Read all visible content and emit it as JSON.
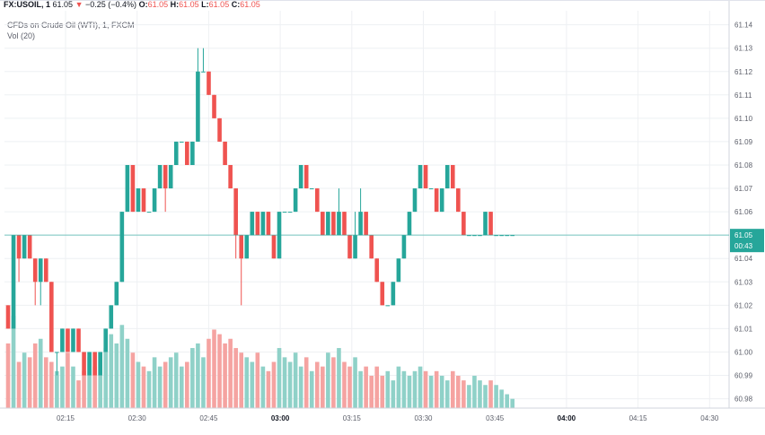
{
  "header": {
    "symbol": "FX:USOIL, 1",
    "last": "61.05",
    "arrow": "▼",
    "change": "−0.25 (−0.4%)",
    "o_label": "O:",
    "o_val": "61.05",
    "h_label": "H:",
    "h_val": "61.05",
    "l_label": "L:",
    "l_val": "61.05",
    "c_label": "C:",
    "c_val": "61.05"
  },
  "legend": {
    "title": "CFDs on Crude Oil (WTI), 1, FXCM",
    "volume": "Vol (20)"
  },
  "price_tag": {
    "value": "61.05",
    "countdown": "00:43"
  },
  "colors": {
    "up": "#26a69a",
    "down": "#ef5350",
    "vol_up": "#8fd1c8",
    "vol_down": "#f5a3a1",
    "price_line": "#26a69a"
  },
  "chart_data": {
    "type": "candlestick",
    "x_ticks": [
      "02:15",
      "02:30",
      "02:45",
      "03:00",
      "03:15",
      "03:30",
      "03:45",
      "04:00",
      "04:15",
      "04:30"
    ],
    "x_ticks_bold": [
      "03:00",
      "04:00"
    ],
    "y_ticks": [
      "61.14",
      "61.13",
      "61.12",
      "61.11",
      "61.10",
      "61.09",
      "61.08",
      "61.07",
      "61.06",
      "61.05",
      "61.04",
      "61.03",
      "61.02",
      "61.01",
      "61.00",
      "60.99",
      "60.98"
    ],
    "y_range": [
      60.976,
      61.146
    ],
    "last_price": 61.05,
    "candles": [
      [
        61.02,
        61.01,
        61.02,
        61.01,
        14
      ],
      [
        61.01,
        61.05,
        61.05,
        61.01,
        20
      ],
      [
        61.05,
        61.04,
        61.05,
        61.03,
        10
      ],
      [
        61.04,
        61.05,
        61.05,
        61.04,
        12
      ],
      [
        61.05,
        61.04,
        61.05,
        61.04,
        11
      ],
      [
        61.04,
        61.03,
        61.04,
        61.02,
        14
      ],
      [
        61.03,
        61.04,
        61.04,
        61.02,
        15
      ],
      [
        61.04,
        61.03,
        61.04,
        61.03,
        11
      ],
      [
        61.03,
        61.0,
        61.03,
        61.0,
        10
      ],
      [
        61.0,
        61.0,
        61.0,
        60.99,
        8
      ],
      [
        61.0,
        61.01,
        61.01,
        61.0,
        9
      ],
      [
        61.01,
        61.0,
        61.01,
        61.0,
        12
      ],
      [
        61.0,
        61.01,
        61.01,
        61.0,
        9
      ],
      [
        61.01,
        61.0,
        61.01,
        61.0,
        6
      ],
      [
        61.0,
        60.99,
        61.0,
        60.99,
        8
      ],
      [
        60.99,
        61.0,
        61.0,
        60.99,
        11
      ],
      [
        61.0,
        60.99,
        61.0,
        60.99,
        9
      ],
      [
        60.99,
        61.0,
        61.0,
        60.99,
        12
      ],
      [
        61.0,
        61.01,
        61.01,
        61.0,
        13
      ],
      [
        61.01,
        61.02,
        61.02,
        61.01,
        16
      ],
      [
        61.02,
        61.03,
        61.03,
        61.02,
        14
      ],
      [
        61.03,
        61.06,
        61.06,
        61.03,
        18
      ],
      [
        61.06,
        61.08,
        61.08,
        61.06,
        15
      ],
      [
        61.08,
        61.06,
        61.08,
        61.06,
        12
      ],
      [
        61.06,
        61.07,
        61.07,
        61.06,
        10
      ],
      [
        61.07,
        61.06,
        61.07,
        61.06,
        9
      ],
      [
        61.06,
        61.06,
        61.06,
        61.06,
        8
      ],
      [
        61.06,
        61.07,
        61.07,
        61.06,
        11
      ],
      [
        61.07,
        61.08,
        61.08,
        61.07,
        9
      ],
      [
        61.08,
        61.07,
        61.08,
        61.06,
        10
      ],
      [
        61.07,
        61.08,
        61.08,
        61.07,
        11
      ],
      [
        61.08,
        61.09,
        61.09,
        61.08,
        12
      ],
      [
        61.09,
        61.09,
        61.09,
        61.09,
        9
      ],
      [
        61.09,
        61.08,
        61.09,
        61.08,
        10
      ],
      [
        61.08,
        61.09,
        61.09,
        61.08,
        13
      ],
      [
        61.09,
        61.12,
        61.13,
        61.09,
        14
      ],
      [
        61.12,
        61.12,
        61.13,
        61.12,
        11
      ],
      [
        61.12,
        61.11,
        61.12,
        61.11,
        15
      ],
      [
        61.11,
        61.1,
        61.11,
        61.1,
        17
      ],
      [
        61.1,
        61.09,
        61.1,
        61.09,
        16
      ],
      [
        61.09,
        61.08,
        61.09,
        61.08,
        14
      ],
      [
        61.08,
        61.07,
        61.08,
        61.07,
        15
      ],
      [
        61.07,
        61.05,
        61.07,
        61.04,
        13
      ],
      [
        61.05,
        61.04,
        61.05,
        61.02,
        12
      ],
      [
        61.04,
        61.05,
        61.05,
        61.04,
        11
      ],
      [
        61.05,
        61.06,
        61.06,
        61.05,
        10
      ],
      [
        61.06,
        61.05,
        61.06,
        61.05,
        12
      ],
      [
        61.05,
        61.06,
        61.06,
        61.05,
        9
      ],
      [
        61.06,
        61.05,
        61.06,
        61.05,
        8
      ],
      [
        61.05,
        61.04,
        61.05,
        61.04,
        10
      ],
      [
        61.04,
        61.06,
        61.06,
        61.04,
        13
      ],
      [
        61.06,
        61.06,
        61.06,
        61.06,
        11
      ],
      [
        61.06,
        61.06,
        61.06,
        61.06,
        10
      ],
      [
        61.06,
        61.07,
        61.07,
        61.06,
        12
      ],
      [
        61.07,
        61.08,
        61.08,
        61.07,
        9
      ],
      [
        61.08,
        61.07,
        61.08,
        61.07,
        11
      ],
      [
        61.07,
        61.07,
        61.07,
        61.07,
        8
      ],
      [
        61.07,
        61.06,
        61.07,
        61.06,
        10
      ],
      [
        61.06,
        61.05,
        61.06,
        61.05,
        9
      ],
      [
        61.05,
        61.06,
        61.06,
        61.05,
        12
      ],
      [
        61.06,
        61.05,
        61.06,
        61.05,
        11
      ],
      [
        61.05,
        61.06,
        61.07,
        61.05,
        13
      ],
      [
        61.06,
        61.05,
        61.06,
        61.05,
        10
      ],
      [
        61.05,
        61.04,
        61.05,
        61.04,
        9
      ],
      [
        61.04,
        61.05,
        61.06,
        61.04,
        11
      ],
      [
        61.05,
        61.06,
        61.07,
        61.05,
        8
      ],
      [
        61.06,
        61.05,
        61.06,
        61.05,
        9
      ],
      [
        61.05,
        61.04,
        61.05,
        61.04,
        7
      ],
      [
        61.04,
        61.03,
        61.04,
        61.03,
        9
      ],
      [
        61.03,
        61.02,
        61.03,
        61.02,
        7
      ],
      [
        61.02,
        61.02,
        61.02,
        61.02,
        8
      ],
      [
        61.02,
        61.03,
        61.03,
        61.02,
        6
      ],
      [
        61.03,
        61.04,
        61.04,
        61.03,
        9
      ],
      [
        61.04,
        61.05,
        61.05,
        61.04,
        8
      ],
      [
        61.05,
        61.06,
        61.06,
        61.05,
        7
      ],
      [
        61.06,
        61.07,
        61.07,
        61.06,
        8
      ],
      [
        61.07,
        61.08,
        61.08,
        61.07,
        9
      ],
      [
        61.08,
        61.07,
        61.08,
        61.07,
        8
      ],
      [
        61.07,
        61.07,
        61.07,
        61.07,
        7
      ],
      [
        61.07,
        61.06,
        61.07,
        61.06,
        8
      ],
      [
        61.06,
        61.07,
        61.07,
        61.06,
        7
      ],
      [
        61.07,
        61.08,
        61.08,
        61.07,
        6
      ],
      [
        61.08,
        61.07,
        61.08,
        61.07,
        8
      ],
      [
        61.07,
        61.06,
        61.07,
        61.06,
        7
      ],
      [
        61.06,
        61.05,
        61.06,
        61.05,
        6
      ],
      [
        61.05,
        61.05,
        61.05,
        61.05,
        5
      ],
      [
        61.05,
        61.05,
        61.05,
        61.05,
        7
      ],
      [
        61.05,
        61.05,
        61.05,
        61.05,
        6
      ],
      [
        61.05,
        61.06,
        61.06,
        61.05,
        5
      ],
      [
        61.06,
        61.05,
        61.06,
        61.05,
        6
      ],
      [
        61.05,
        61.05,
        61.05,
        61.05,
        5
      ],
      [
        61.05,
        61.05,
        61.05,
        61.05,
        4
      ],
      [
        61.05,
        61.05,
        61.05,
        61.05,
        3
      ],
      [
        61.05,
        61.05,
        61.05,
        61.05,
        2
      ]
    ]
  }
}
